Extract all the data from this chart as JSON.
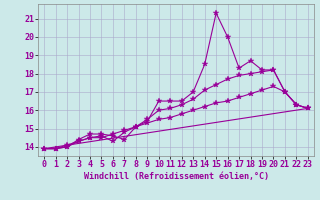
{
  "xlabel": "Windchill (Refroidissement éolien,°C)",
  "ylabel": "",
  "bg_color": "#cce9e9",
  "grid_color": "#aaaacc",
  "line_color": "#990099",
  "xlim": [
    -0.5,
    23.5
  ],
  "ylim": [
    13.5,
    21.8
  ],
  "yticks": [
    14,
    15,
    16,
    17,
    18,
    19,
    20,
    21
  ],
  "xticks": [
    0,
    1,
    2,
    3,
    4,
    5,
    6,
    7,
    8,
    9,
    10,
    11,
    12,
    13,
    14,
    15,
    16,
    17,
    18,
    19,
    20,
    21,
    22,
    23
  ],
  "line1_x": [
    0,
    1,
    2,
    3,
    4,
    5,
    6,
    7,
    8,
    9,
    10,
    11,
    12,
    13,
    14,
    15,
    16,
    17,
    18,
    19,
    20,
    21,
    22,
    23
  ],
  "line1_y": [
    13.9,
    13.9,
    14.0,
    14.4,
    14.7,
    14.7,
    14.6,
    14.4,
    15.1,
    15.4,
    16.5,
    16.5,
    16.5,
    17.0,
    18.5,
    21.3,
    20.0,
    18.3,
    18.7,
    18.2,
    18.2,
    17.0,
    16.3,
    16.1
  ],
  "line2_x": [
    0,
    1,
    2,
    3,
    4,
    5,
    6,
    7,
    8,
    9,
    10,
    11,
    12,
    13,
    14,
    15,
    16,
    17,
    18,
    19,
    20,
    21,
    22,
    23
  ],
  "line2_y": [
    13.9,
    13.9,
    14.0,
    14.3,
    14.5,
    14.6,
    14.3,
    14.8,
    15.1,
    15.5,
    16.0,
    16.1,
    16.3,
    16.6,
    17.1,
    17.4,
    17.7,
    17.9,
    18.0,
    18.1,
    18.2,
    17.0,
    16.3,
    16.1
  ],
  "line3_x": [
    0,
    1,
    2,
    3,
    4,
    5,
    6,
    7,
    8,
    9,
    10,
    11,
    12,
    13,
    14,
    15,
    16,
    17,
    18,
    19,
    20,
    21,
    22,
    23
  ],
  "line3_y": [
    13.9,
    13.9,
    14.1,
    14.3,
    14.5,
    14.5,
    14.7,
    14.9,
    15.1,
    15.3,
    15.5,
    15.6,
    15.8,
    16.0,
    16.2,
    16.4,
    16.5,
    16.7,
    16.9,
    17.1,
    17.3,
    17.0,
    16.3,
    16.1
  ],
  "line4_x": [
    0,
    23
  ],
  "line4_y": [
    13.9,
    16.1
  ],
  "marker": "*",
  "marker_size": 4,
  "linewidth": 0.8,
  "xlabel_fontsize": 6,
  "tick_fontsize": 6
}
